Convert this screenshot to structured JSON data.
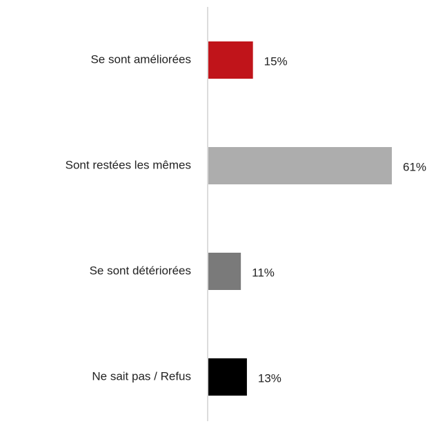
{
  "chart_data": {
    "type": "hbar",
    "categories": [
      "Se sont améliorées",
      "Sont restées les mêmes",
      "Se sont détériorées",
      "Ne sait pas / Refus"
    ],
    "values": [
      15,
      61,
      11,
      13
    ],
    "value_labels": [
      "15%",
      "61%",
      "11%",
      "13%"
    ],
    "colors": [
      "#c0141a",
      "#adadad",
      "#7a7a7a",
      "#000000"
    ]
  }
}
